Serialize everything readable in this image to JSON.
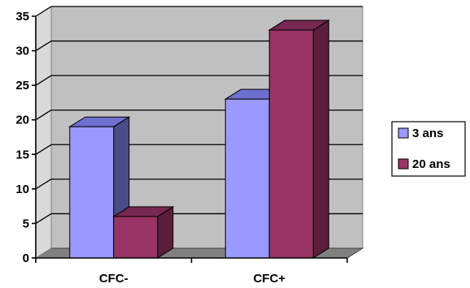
{
  "chart_data": {
    "type": "bar",
    "categories": [
      "CFC-",
      "CFC+"
    ],
    "series": [
      {
        "name": "3 ans",
        "values": [
          19,
          23
        ]
      },
      {
        "name": "20 ans",
        "values": [
          6,
          33
        ]
      }
    ],
    "ylim": [
      0,
      35
    ],
    "yticks": [
      0,
      5,
      10,
      15,
      20,
      25,
      30,
      35
    ],
    "grid": true,
    "legend_position": "right",
    "style": "3d-clustered-column",
    "colors": {
      "wall": "#c0c0c0",
      "floor": "#808080",
      "series": [
        {
          "front": "#9999ff",
          "top": "#6f6fcf",
          "side": "#4b4b88"
        },
        {
          "front": "#993366",
          "top": "#762850",
          "side": "#5a1e3c"
        }
      ]
    }
  }
}
